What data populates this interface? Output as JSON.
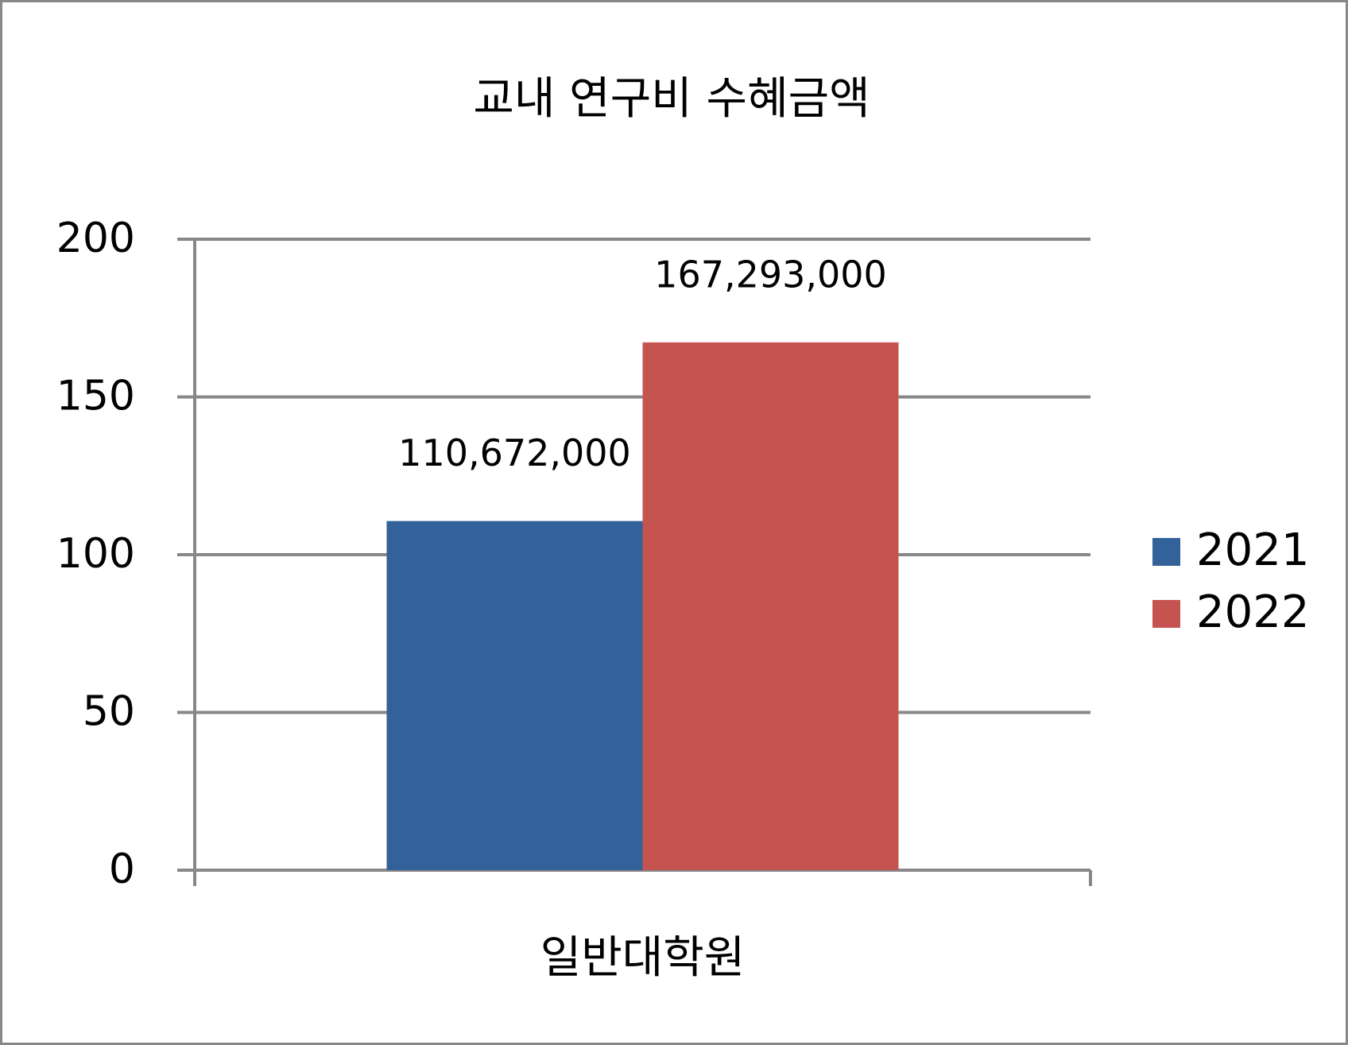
{
  "chart_data": {
    "type": "bar",
    "title": "교내 연구비 수혜금액",
    "categories": [
      "일반대학원"
    ],
    "series": [
      {
        "name": "2021",
        "color": "#336199",
        "values": [
          110.672
        ],
        "value_labels": [
          "110,672,000"
        ]
      },
      {
        "name": "2022",
        "color": "#c55451",
        "values": [
          167.293
        ],
        "value_labels": [
          "167,293,000"
        ]
      }
    ],
    "ylim": [
      0,
      200
    ],
    "yticks": [
      0,
      50,
      100,
      150,
      200
    ],
    "grid": true,
    "legend": "right"
  }
}
